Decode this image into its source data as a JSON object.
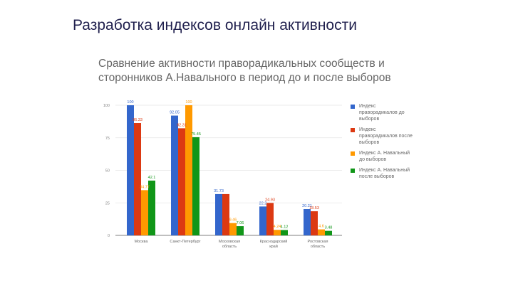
{
  "slide": {
    "title": "Разработка индексов онлайн активности"
  },
  "chart_data": {
    "type": "bar",
    "title": "Сравнение активности праворадикальных сообществ и сторонников А.Навального в период до и после выборов",
    "categories": [
      "Москва",
      "Санкт-Петербург",
      "Московская область",
      "Краснодарский край",
      "Ростовская область"
    ],
    "series": [
      {
        "name": "Индекс праворадикалов до выборов",
        "color": "#3366cc",
        "values": [
          100,
          92.05,
          31.73,
          22.2,
          20.21
        ],
        "labels": [
          "100",
          "92.05",
          "31.73",
          "22.2",
          "20.21"
        ]
      },
      {
        "name": "Индекс праворадикалов после выборов",
        "color": "#dc3912",
        "values": [
          86.33,
          82.31,
          31.73,
          24.93,
          18.53
        ],
        "labels": [
          "86.33",
          "82.31",
          "",
          "24.93",
          "18.53"
        ]
      },
      {
        "name": "Индекс А. Навальный до выборов",
        "color": "#ff9900",
        "values": [
          34.77,
          100,
          9.46,
          4.24,
          4.6
        ],
        "labels": [
          "34.77",
          "100",
          "9.46",
          "4.24",
          "4.6"
        ]
      },
      {
        "name": "Индекс А. Навальный после выборов",
        "color": "#109618",
        "values": [
          42.1,
          75.45,
          7.06,
          4.12,
          3.48
        ],
        "labels": [
          "42.1",
          "75.45",
          "7.06",
          "4.12",
          "3.48"
        ]
      }
    ],
    "ylim": [
      0,
      100
    ],
    "yticks": [
      0,
      25,
      50,
      75,
      100
    ],
    "ytick_labels": [
      "0",
      "25",
      "50",
      "75",
      "100"
    ],
    "grid": true,
    "legend_position": "right"
  }
}
